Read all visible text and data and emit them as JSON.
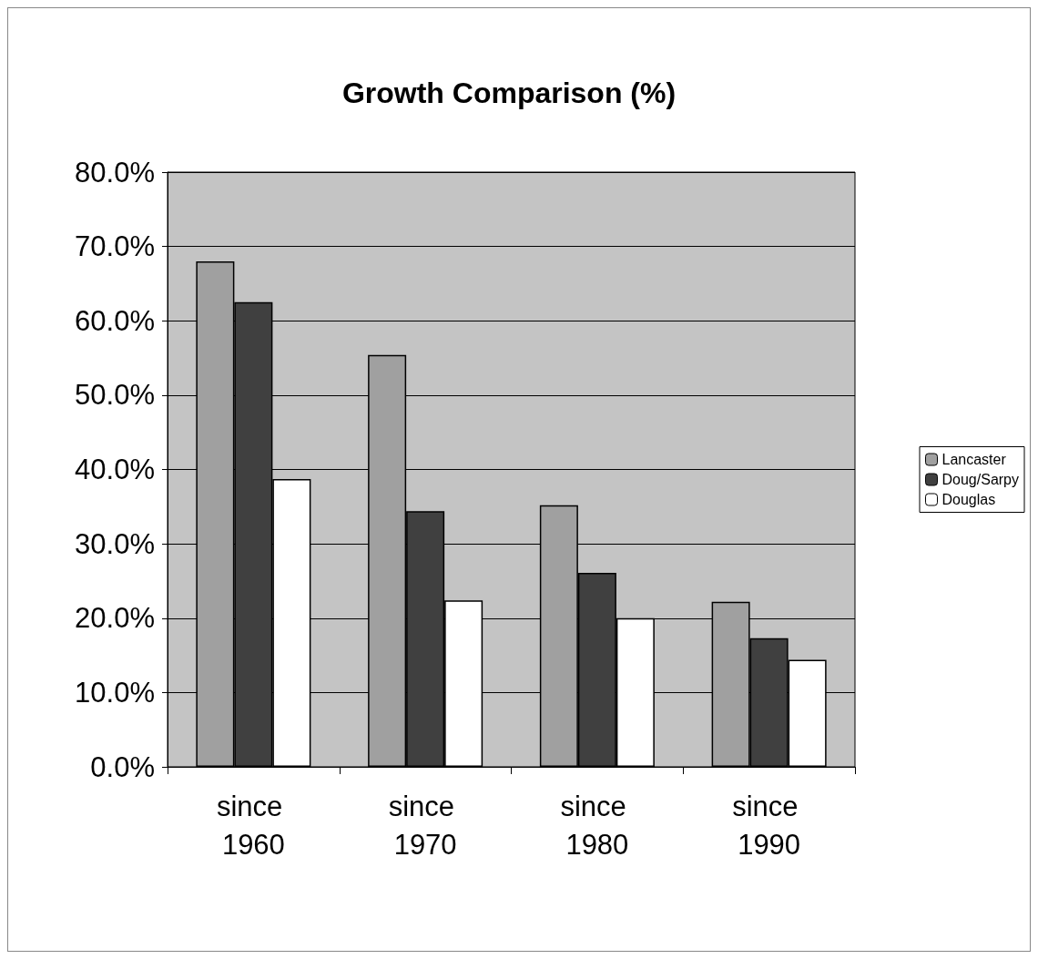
{
  "chart_data": {
    "type": "bar",
    "title": "Growth Comparison (%)",
    "categories": [
      "since 1960",
      "since 1970",
      "since 1980",
      "since 1990"
    ],
    "series": [
      {
        "name": "Lancaster",
        "color": "#a0a0a0",
        "values": [
          68.0,
          55.4,
          35.2,
          22.2
        ]
      },
      {
        "name": "Doug/Sarpy",
        "color": "#404040",
        "values": [
          62.5,
          34.4,
          26.1,
          17.3
        ]
      },
      {
        "name": "Douglas",
        "color": "#ffffff",
        "values": [
          38.7,
          22.4,
          20.0,
          14.4
        ]
      }
    ],
    "ylim": [
      0,
      80
    ],
    "yticks": [
      {
        "value": 0,
        "label": "0.0%"
      },
      {
        "value": 10,
        "label": "10.0%"
      },
      {
        "value": 20,
        "label": "20.0%"
      },
      {
        "value": 30,
        "label": "30.0%"
      },
      {
        "value": 40,
        "label": "40.0%"
      },
      {
        "value": 50,
        "label": "50.0%"
      },
      {
        "value": 60,
        "label": "60.0%"
      },
      {
        "value": 70,
        "label": "70.0%"
      },
      {
        "value": 80,
        "label": "80.0%"
      }
    ],
    "grid": "y",
    "legend": "right"
  }
}
